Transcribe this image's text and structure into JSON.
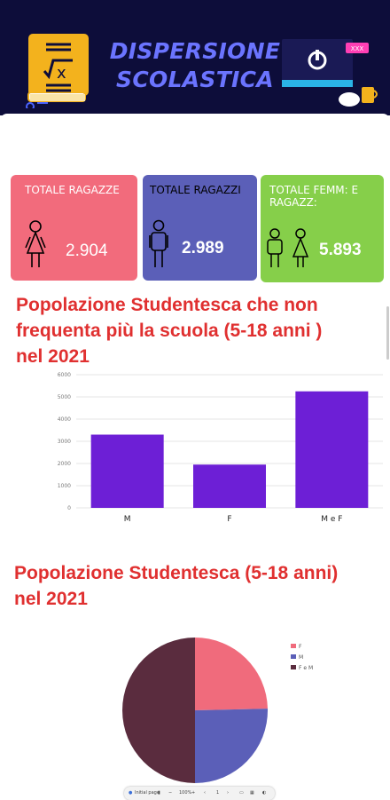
{
  "header": {
    "title_line1": "DISPERSIONE",
    "title_line2": "SCOLASTICA",
    "monitor_badge": "XXX"
  },
  "cards": [
    {
      "label": "TOTALE RAGAZZE",
      "value": "2.904",
      "color": "#f26b7c"
    },
    {
      "label": "TOTALE RAGAZZI",
      "value": "2.989",
      "color": "#5b5fb8"
    },
    {
      "label": "TOTALE FEMM: E RAGAZZ:",
      "value": "5.893",
      "color": "#86cf4a"
    }
  ],
  "section1": {
    "title_lines": [
      "Popolazione Studentesca che non",
      "frequenta più la scuola (5-18 anni )",
      "nel 2021"
    ]
  },
  "section2": {
    "title_lines": [
      "Popolazione Studentesca (5-18 anni)",
      "nel 2021"
    ]
  },
  "toolbar": {
    "zoom": "100%",
    "pages": "1"
  },
  "chart_data": [
    {
      "type": "bar",
      "categories": [
        "M",
        "F",
        "M e F"
      ],
      "values": [
        3300,
        1950,
        5250
      ],
      "ylim": [
        0,
        6000
      ],
      "yticks": [
        0,
        1000,
        2000,
        3000,
        4000,
        5000,
        6000
      ],
      "bar_color": "#6d1fd6",
      "grid": true
    },
    {
      "type": "pie",
      "labels": [
        "F",
        "M",
        "F e M"
      ],
      "values": [
        2904,
        2989,
        5893
      ],
      "colors": [
        "#f06b7c",
        "#5b5fb8",
        "#5a2c3e"
      ],
      "legend": "right"
    }
  ]
}
